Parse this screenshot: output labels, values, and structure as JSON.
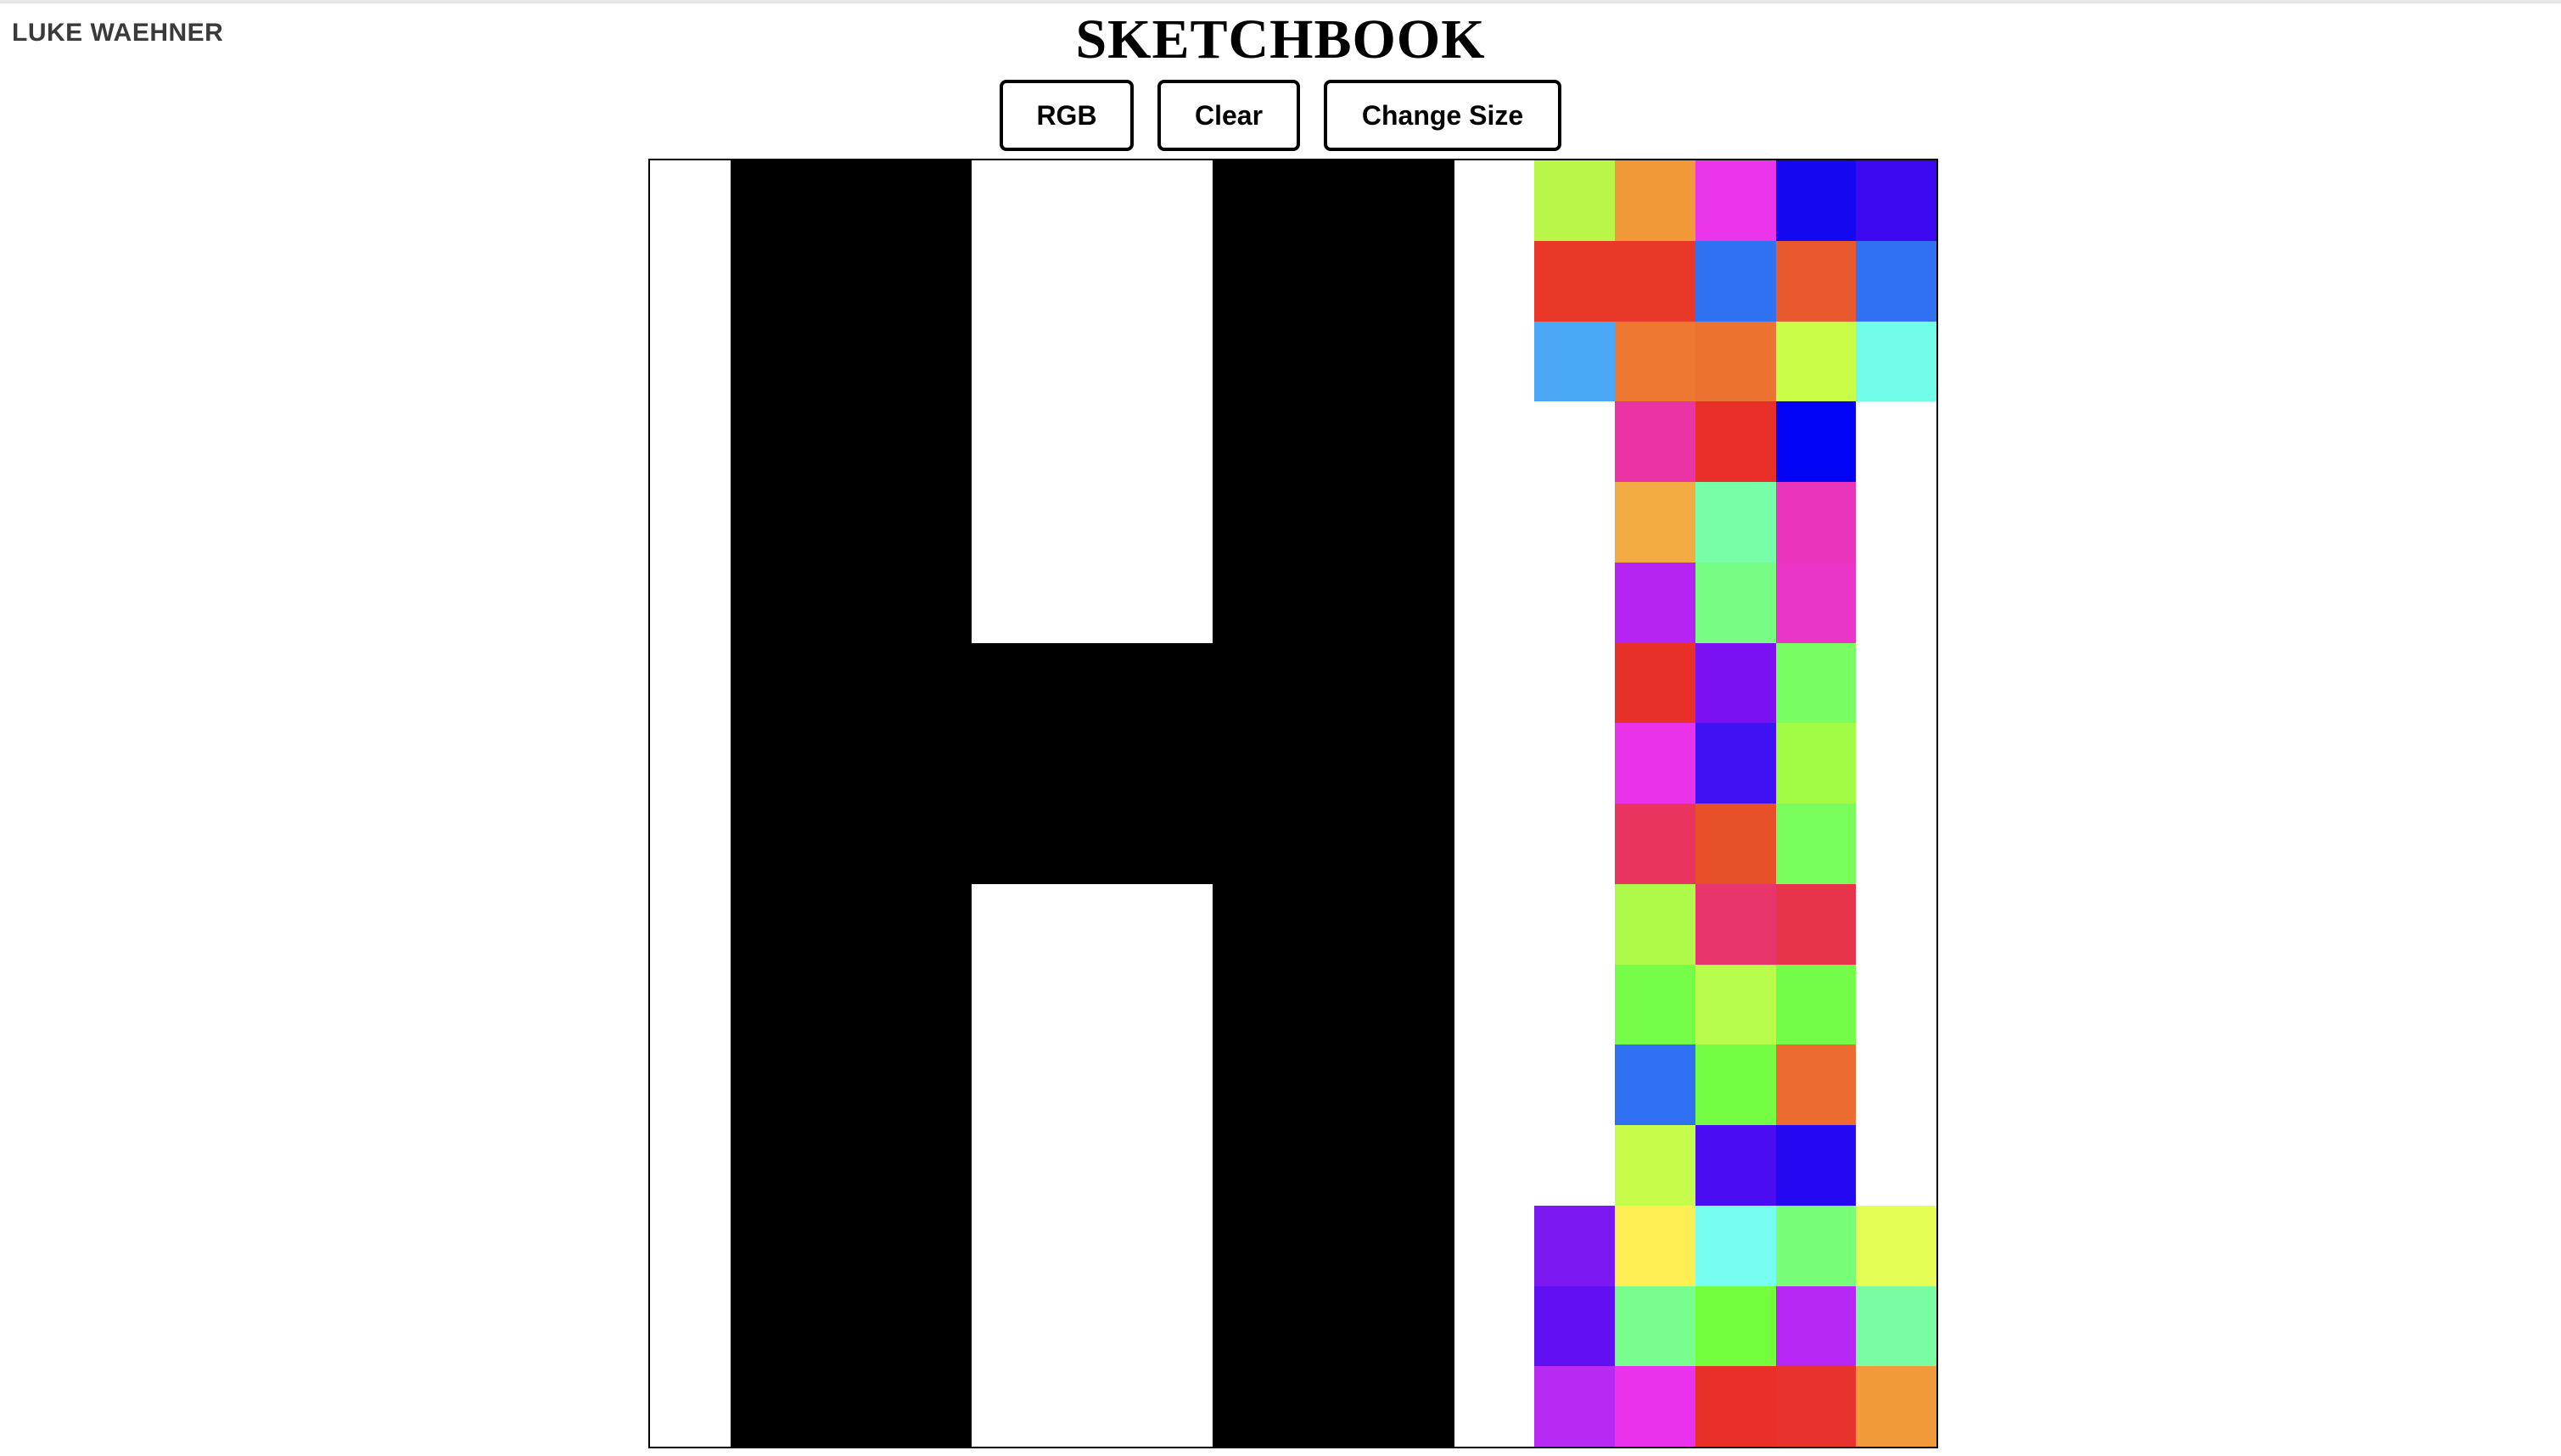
{
  "author": "LUKE WAEHNER",
  "title": "SKETCHBOOK",
  "buttons": {
    "rgb": "RGB",
    "clear": "Clear",
    "change_size": "Change Size"
  },
  "grid": {
    "size": 16,
    "rows": [
      [
        "#ffffff",
        "#000000",
        "#000000",
        "#000000",
        "#ffffff",
        "#ffffff",
        "#ffffff",
        "#000000",
        "#000000",
        "#000000",
        "#ffffff",
        "#b8f64a",
        "#f19838",
        "#ea35ea",
        "#1308f0",
        "#3c08f0"
      ],
      [
        "#ffffff",
        "#000000",
        "#000000",
        "#000000",
        "#ffffff",
        "#ffffff",
        "#ffffff",
        "#000000",
        "#000000",
        "#000000",
        "#ffffff",
        "#e93828",
        "#ea3828",
        "#3071f1",
        "#e85a2e",
        "#3070f1"
      ],
      [
        "#ffffff",
        "#000000",
        "#000000",
        "#000000",
        "#ffffff",
        "#ffffff",
        "#ffffff",
        "#000000",
        "#000000",
        "#000000",
        "#ffffff",
        "#4aa8f6",
        "#ee7832",
        "#ec7232",
        "#cafd48",
        "#72fde8"
      ],
      [
        "#ffffff",
        "#000000",
        "#000000",
        "#000000",
        "#ffffff",
        "#ffffff",
        "#ffffff",
        "#000000",
        "#000000",
        "#000000",
        "#ffffff",
        "#ffffff",
        "#ea34a6",
        "#e92f2a",
        "#0202f4",
        "#ffffff"
      ],
      [
        "#ffffff",
        "#000000",
        "#000000",
        "#000000",
        "#ffffff",
        "#ffffff",
        "#ffffff",
        "#000000",
        "#000000",
        "#000000",
        "#ffffff",
        "#ffffff",
        "#f2aa42",
        "#78fea8",
        "#ea34bc",
        "#ffffff"
      ],
      [
        "#ffffff",
        "#000000",
        "#000000",
        "#000000",
        "#ffffff",
        "#ffffff",
        "#ffffff",
        "#000000",
        "#000000",
        "#000000",
        "#ffffff",
        "#ffffff",
        "#b624f4",
        "#78fd84",
        "#ea35c8",
        "#ffffff"
      ],
      [
        "#ffffff",
        "#000000",
        "#000000",
        "#000000",
        "#000000",
        "#000000",
        "#000000",
        "#000000",
        "#000000",
        "#000000",
        "#ffffff",
        "#ffffff",
        "#e8302a",
        "#7b10f2",
        "#78fd62",
        "#ffffff"
      ],
      [
        "#ffffff",
        "#000000",
        "#000000",
        "#000000",
        "#000000",
        "#000000",
        "#000000",
        "#000000",
        "#000000",
        "#000000",
        "#ffffff",
        "#ffffff",
        "#ea32ea",
        "#4012f2",
        "#a2fc46",
        "#ffffff"
      ],
      [
        "#ffffff",
        "#000000",
        "#000000",
        "#000000",
        "#000000",
        "#000000",
        "#000000",
        "#000000",
        "#000000",
        "#000000",
        "#ffffff",
        "#ffffff",
        "#e8345e",
        "#e8502a",
        "#78fd5c",
        "#ffffff"
      ],
      [
        "#ffffff",
        "#000000",
        "#000000",
        "#000000",
        "#ffffff",
        "#ffffff",
        "#ffffff",
        "#000000",
        "#000000",
        "#000000",
        "#ffffff",
        "#ffffff",
        "#adfa4a",
        "#e8356c",
        "#e8344a",
        "#ffffff"
      ],
      [
        "#ffffff",
        "#000000",
        "#000000",
        "#000000",
        "#ffffff",
        "#ffffff",
        "#ffffff",
        "#000000",
        "#000000",
        "#000000",
        "#ffffff",
        "#ffffff",
        "#76fd48",
        "#b8fc4c",
        "#74fd48",
        "#ffffff"
      ],
      [
        "#ffffff",
        "#000000",
        "#000000",
        "#000000",
        "#ffffff",
        "#ffffff",
        "#ffffff",
        "#000000",
        "#000000",
        "#000000",
        "#ffffff",
        "#ffffff",
        "#3070f2",
        "#74fd42",
        "#ec6b30",
        "#ffffff"
      ],
      [
        "#ffffff",
        "#000000",
        "#000000",
        "#000000",
        "#ffffff",
        "#ffffff",
        "#ffffff",
        "#000000",
        "#000000",
        "#000000",
        "#ffffff",
        "#ffffff",
        "#c6fc4a",
        "#4a0cf0",
        "#2408f2",
        "#ffffff"
      ],
      [
        "#ffffff",
        "#000000",
        "#000000",
        "#000000",
        "#ffffff",
        "#ffffff",
        "#ffffff",
        "#000000",
        "#000000",
        "#000000",
        "#ffffff",
        "#7c18f2",
        "#fdee54",
        "#78fef0",
        "#78fd78",
        "#e6fd56"
      ],
      [
        "#ffffff",
        "#000000",
        "#000000",
        "#000000",
        "#ffffff",
        "#ffffff",
        "#ffffff",
        "#000000",
        "#000000",
        "#000000",
        "#ffffff",
        "#6010f2",
        "#78fd8e",
        "#74fd3c",
        "#b626f4",
        "#78fda2"
      ],
      [
        "#ffffff",
        "#000000",
        "#000000",
        "#000000",
        "#ffffff",
        "#ffffff",
        "#ffffff",
        "#000000",
        "#000000",
        "#000000",
        "#ffffff",
        "#b82af4",
        "#ea32ec",
        "#e83028",
        "#e8322e",
        "#f09a3a"
      ]
    ]
  }
}
